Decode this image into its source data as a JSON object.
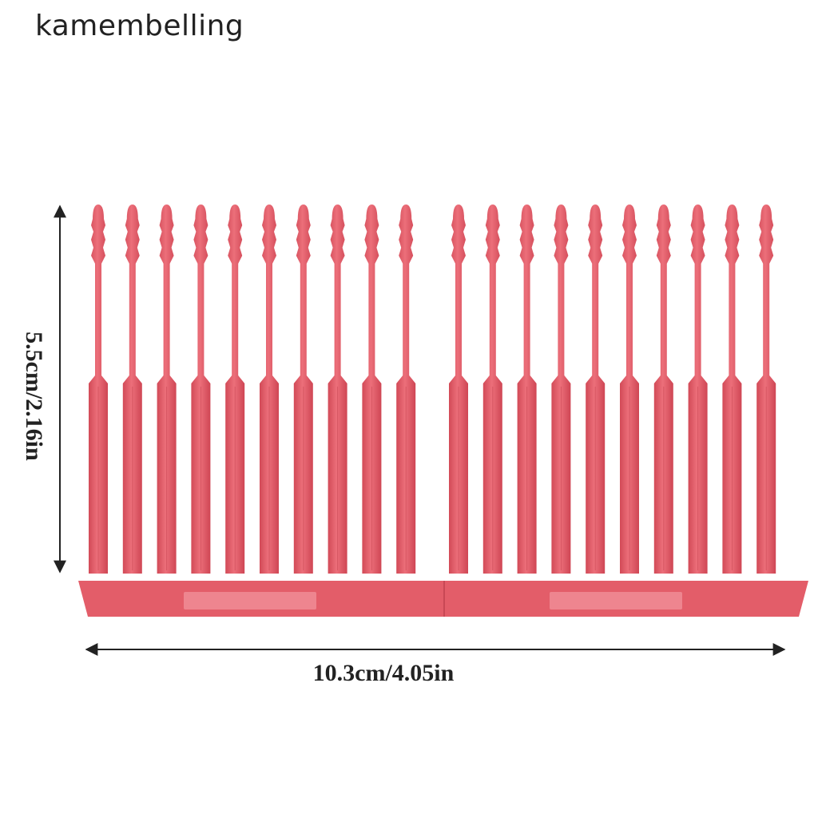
{
  "brand": {
    "name": "kamembelling"
  },
  "dimensions": {
    "width_label": "10.3cm/4.05in",
    "height_label": "5.5cm/2.16in"
  },
  "product": {
    "prong_count": 20,
    "color": "#e05a66",
    "panel_color": "#f08c96"
  }
}
